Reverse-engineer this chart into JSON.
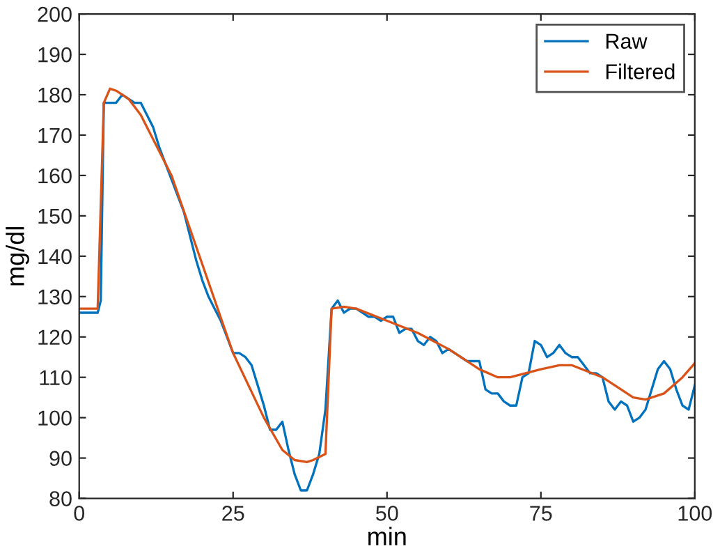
{
  "chart_data": {
    "type": "line",
    "xlabel": "min",
    "ylabel": "mg/dl",
    "xlim": [
      0,
      100
    ],
    "xticks": [
      0,
      25,
      50,
      75,
      100
    ],
    "ylim": [
      80,
      200
    ],
    "yticks": [
      80,
      90,
      100,
      110,
      120,
      130,
      140,
      150,
      160,
      170,
      180,
      190,
      200
    ],
    "grid": false,
    "legend": "top right",
    "series": [
      {
        "name": "Raw",
        "color": "#0072bd",
        "x": [
          0,
          1,
          2,
          3,
          3.5,
          4,
          5,
          6,
          7,
          8,
          9,
          10,
          11,
          12,
          13,
          14,
          15,
          16,
          17,
          18,
          19,
          20,
          21,
          22,
          23,
          24,
          25,
          26,
          27,
          28,
          29,
          30,
          31,
          32,
          33,
          34,
          35,
          36,
          37,
          38,
          39,
          40,
          41,
          42,
          43,
          44,
          45,
          46,
          47,
          48,
          49,
          50,
          51,
          52,
          53,
          54,
          55,
          56,
          57,
          58,
          59,
          60,
          61,
          62,
          63,
          64,
          65,
          66,
          67,
          68,
          69,
          70,
          71,
          72,
          73,
          74,
          75,
          76,
          77,
          78,
          79,
          80,
          81,
          82,
          83,
          84,
          85,
          86,
          87,
          88,
          89,
          90,
          91,
          92,
          93,
          94,
          95,
          96,
          97,
          98,
          99,
          100
        ],
        "values": [
          126,
          126,
          126,
          126,
          129,
          178,
          178,
          178,
          180,
          179,
          178,
          178,
          175,
          172,
          167,
          163,
          159,
          155,
          151,
          145,
          139,
          134,
          130,
          127,
          124,
          120,
          116,
          116,
          115,
          113,
          108,
          103,
          97,
          97,
          99,
          92,
          86,
          82,
          82,
          86,
          91,
          102,
          127,
          129,
          126,
          127,
          127,
          126,
          125,
          125,
          124,
          125,
          125,
          121,
          122,
          122,
          119,
          118,
          120,
          119,
          116,
          117,
          116,
          115,
          114,
          114,
          114,
          107,
          106,
          106,
          104,
          103,
          103,
          110,
          111,
          119,
          118,
          115,
          116,
          118,
          116,
          115,
          115,
          113,
          111,
          111,
          110,
          104,
          102,
          104,
          103,
          99,
          100,
          102,
          107,
          112,
          114,
          112,
          107,
          103,
          102,
          108
        ]
      },
      {
        "name": "Filtered",
        "color": "#d95319",
        "x": [
          0,
          3,
          4,
          5,
          6,
          8,
          10,
          15,
          20,
          25,
          30,
          33,
          35,
          37,
          38,
          40,
          41,
          43,
          45,
          50,
          55,
          60,
          65,
          68,
          70,
          75,
          78,
          80,
          85,
          90,
          92,
          95,
          98,
          100
        ],
        "values": [
          127,
          127,
          178,
          181.5,
          181,
          179,
          175,
          160,
          138,
          116,
          100,
          92,
          89.5,
          89,
          89.5,
          91,
          127,
          127.5,
          127,
          124,
          121,
          117,
          112,
          110,
          110,
          112,
          113,
          113,
          110,
          105,
          104.5,
          106,
          110,
          113.5
        ]
      }
    ]
  }
}
